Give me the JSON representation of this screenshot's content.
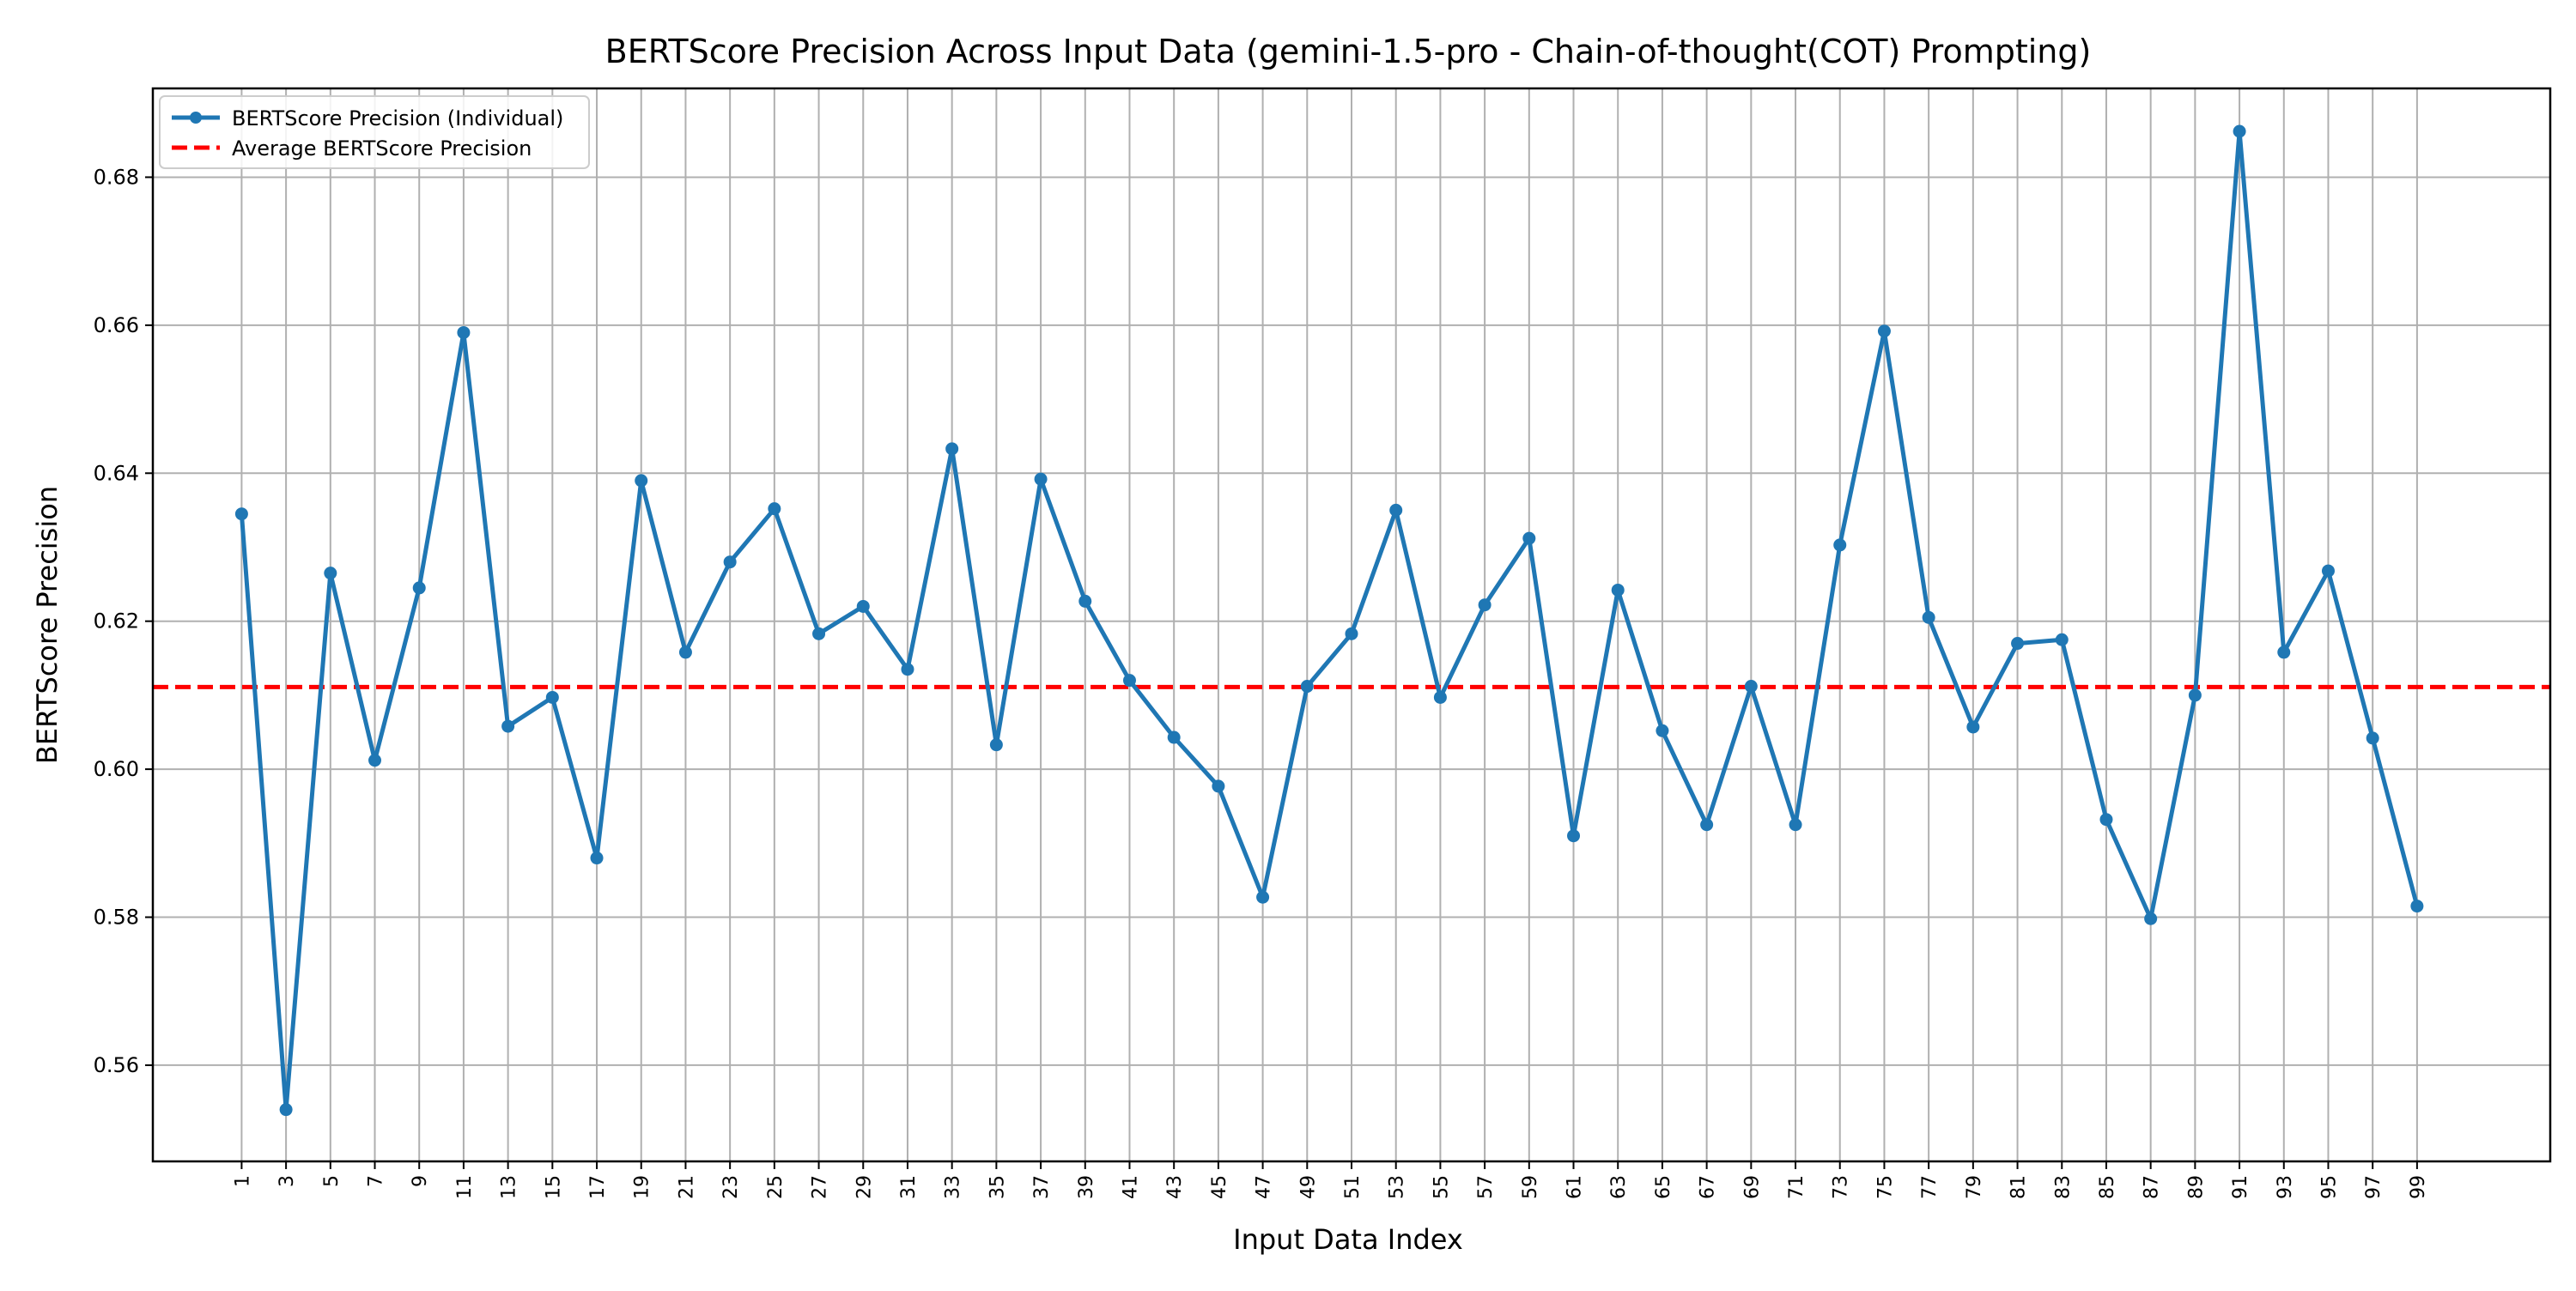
{
  "chart_data": {
    "type": "line",
    "title": "BERTScore Precision Across Input Data (gemini-1.5-pro - Chain-of-thought(COT) Prompting)",
    "xlabel": "Input Data Index",
    "ylabel": "BERTScore Precision",
    "xlim": [
      -3,
      105
    ],
    "ylim": [
      0.547,
      0.692
    ],
    "x_ticks": [
      1,
      3,
      5,
      7,
      9,
      11,
      13,
      15,
      17,
      19,
      21,
      23,
      25,
      27,
      29,
      31,
      33,
      35,
      37,
      39,
      41,
      43,
      45,
      47,
      49,
      51,
      53,
      55,
      57,
      59,
      61,
      63,
      65,
      67,
      69,
      71,
      73,
      75,
      77,
      79,
      81,
      83,
      85,
      87,
      89,
      91,
      93,
      95,
      97,
      99
    ],
    "y_ticks": [
      0.56,
      0.58,
      0.6,
      0.62,
      0.64,
      0.66,
      0.68
    ],
    "y_tick_labels": [
      "0.56",
      "0.58",
      "0.60",
      "0.62",
      "0.64",
      "0.66",
      "0.68"
    ],
    "grid": true,
    "legend_position": "top-left",
    "series": [
      {
        "name": "BERTScore Precision (Individual)",
        "color": "#1f77b4",
        "style": "solid-with-markers",
        "x": [
          1,
          3,
          5,
          7,
          9,
          11,
          13,
          15,
          17,
          19,
          21,
          23,
          25,
          27,
          29,
          31,
          33,
          35,
          37,
          39,
          41,
          43,
          45,
          47,
          49,
          51,
          53,
          55,
          57,
          59,
          61,
          63,
          65,
          67,
          69,
          71,
          73,
          75,
          77,
          79,
          81,
          83,
          85,
          87,
          89,
          91,
          93,
          95,
          97,
          99
        ],
        "values": [
          0.6345,
          0.554,
          0.6265,
          0.6012,
          0.6245,
          0.659,
          0.6058,
          0.6097,
          0.588,
          0.639,
          0.6158,
          0.628,
          0.6352,
          0.6183,
          0.622,
          0.6135,
          0.6433,
          0.6033,
          0.6392,
          0.6227,
          0.612,
          0.6043,
          0.5977,
          0.5827,
          0.6112,
          0.6183,
          0.635,
          0.6097,
          0.6222,
          0.6312,
          0.591,
          0.6242,
          0.6052,
          0.5925,
          0.6112,
          0.5925,
          0.6303,
          0.6592,
          0.6205,
          0.6057,
          0.617,
          0.6175,
          0.5932,
          0.5798,
          0.61,
          0.6862,
          0.6158,
          0.6268,
          0.6042,
          0.5815
        ]
      },
      {
        "name": "Average BERTScore Precision",
        "color": "#ff0000",
        "style": "dashed",
        "value": 0.6111
      }
    ]
  }
}
